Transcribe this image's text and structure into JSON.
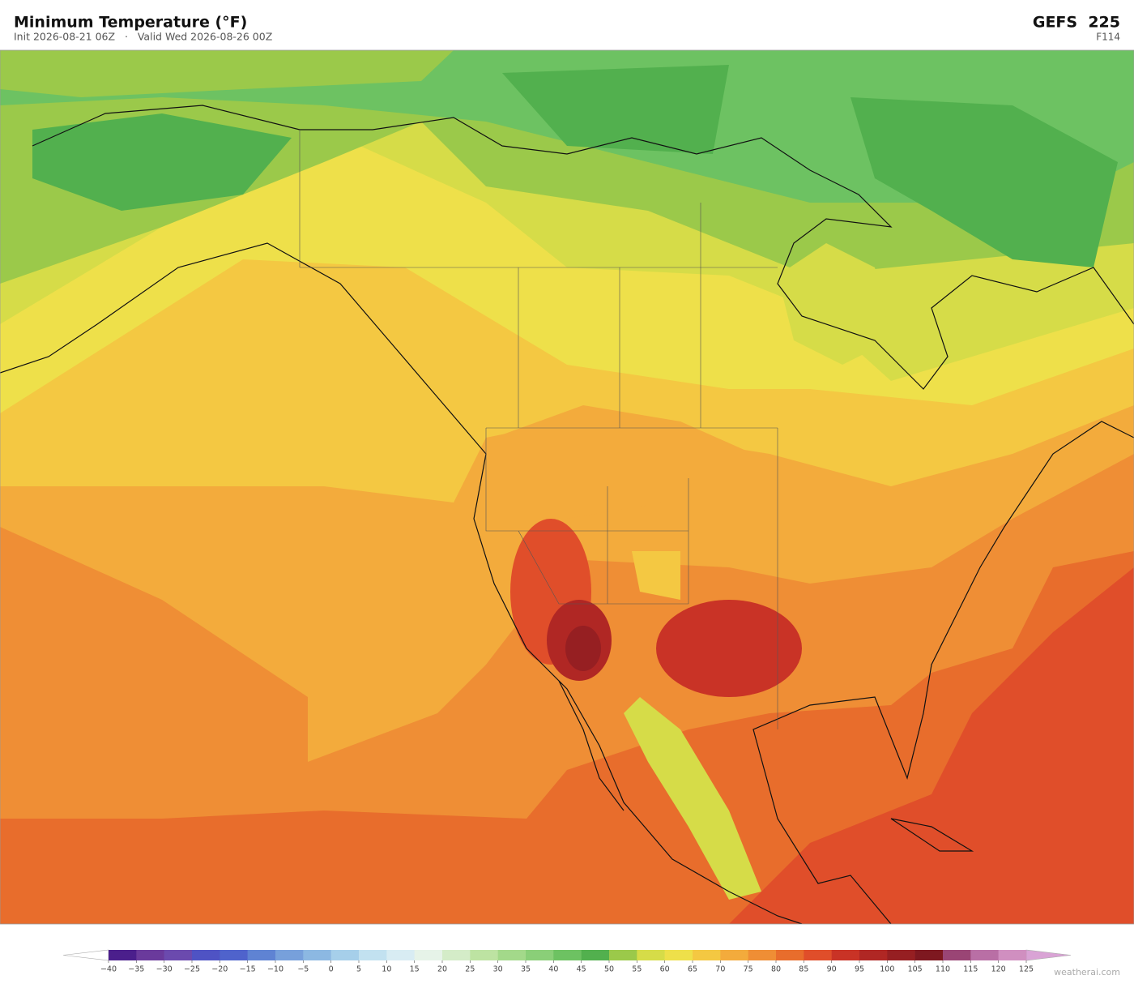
{
  "header": {
    "title": "Minimum Temperature  (°F)",
    "subtitle": "Init 2026-08-21 06Z   ·   Valid Wed 2026-08-26 00Z",
    "model": "GEFS  225",
    "forecast_hour": "F114"
  },
  "colorbar": {
    "ticks": [
      {
        "value": -40,
        "label": "−40"
      },
      {
        "value": -35,
        "label": "−35"
      },
      {
        "value": -30,
        "label": "−30"
      },
      {
        "value": -25,
        "label": "−25"
      },
      {
        "value": -20,
        "label": "−20"
      },
      {
        "value": -15,
        "label": "−15"
      },
      {
        "value": -10,
        "label": "−10"
      },
      {
        "value": -5,
        "label": "−5"
      },
      0,
      5,
      10,
      15,
      20,
      25,
      30,
      35,
      40,
      45,
      50,
      55,
      60,
      65,
      70,
      75,
      80,
      85,
      90,
      95,
      100,
      105,
      110,
      115,
      120,
      125
    ],
    "colors": [
      "#4b1f8c",
      "#6a3a9c",
      "#6b4aae",
      "#4f53c4",
      "#4f63cc",
      "#5f83d3",
      "#77a0db",
      "#8cb8e2",
      "#a6cfea",
      "#c2e1f0",
      "#d8ecf3",
      "#e6f3e8",
      "#d4ecc8",
      "#bde3a2",
      "#a3d98a",
      "#8acf78",
      "#6dc262",
      "#52b04e",
      "#9bc94a",
      "#d6dc48",
      "#eee04a",
      "#f4c842",
      "#f3ab3c",
      "#ef8e35",
      "#e86d2c",
      "#e04e2a",
      "#c93326",
      "#b02724",
      "#961f22",
      "#7e1820",
      "#9a4575",
      "#b96fa5",
      "#d08fc0"
    ],
    "under_color": "#ffffff",
    "over_color": "#d9a3d5"
  },
  "footer": {
    "watermark": "weatherai.com"
  }
}
